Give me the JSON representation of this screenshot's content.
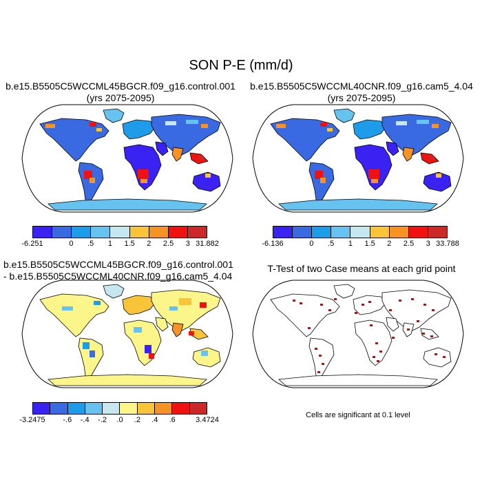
{
  "main_title": "SON P-E (mm/d)",
  "panel1": {
    "title_line1": "b.e15.B5505C5WCCML45BGCR.f09_g16.control.001",
    "title_line2": "(yrs 2075-2095)",
    "colorbar": {
      "colors": [
        "#3a23f2",
        "#3a6ae2",
        "#1e9be9",
        "#66c3ef",
        "#c7e7f0",
        "#f7c43a",
        "#f79325",
        "#f01111",
        "#cc2828"
      ],
      "labels": [
        "-6.251",
        "0",
        ".5",
        "1",
        "1.5",
        "2",
        "2.5",
        "3",
        "31.882"
      ]
    }
  },
  "panel2": {
    "title_line1": "b.e15.B5505C5WCCML40CNR.f09_g16.cam5_4.04",
    "title_line2": "(yrs 2075-2095)",
    "colorbar": {
      "colors": [
        "#3a23f2",
        "#3a6ae2",
        "#1e9be9",
        "#66c3ef",
        "#c7e7f0",
        "#f7c43a",
        "#f79325",
        "#f01111",
        "#cc2828"
      ],
      "labels": [
        "-6.136",
        "0",
        ".5",
        "1",
        "1.5",
        "2",
        "2.5",
        "3",
        "33.788"
      ]
    }
  },
  "panel3": {
    "title_line1": "b.e15.B5505C5WCCML45BGCR.f09_g16.control.001",
    "title_line2": "- b.e15.B5505C5WCCML40CNR.f09_g16.cam5_4.04",
    "colorbar": {
      "colors": [
        "#3a23f2",
        "#3a6ae2",
        "#1e9be9",
        "#66c3ef",
        "#c7e7f0",
        "#fcf58a",
        "#f7c43a",
        "#f79325",
        "#f01111",
        "#cc2828"
      ],
      "labels": [
        "-3.2475",
        "-.6",
        "-.4",
        "-.2",
        ".0",
        ".2",
        ".4",
        ".6",
        "3.4724"
      ]
    }
  },
  "panel4": {
    "title": "T-Test of two Case means at each grid point",
    "note": "Cells are significant at 0.1 level",
    "significant_color": "#e00000"
  }
}
